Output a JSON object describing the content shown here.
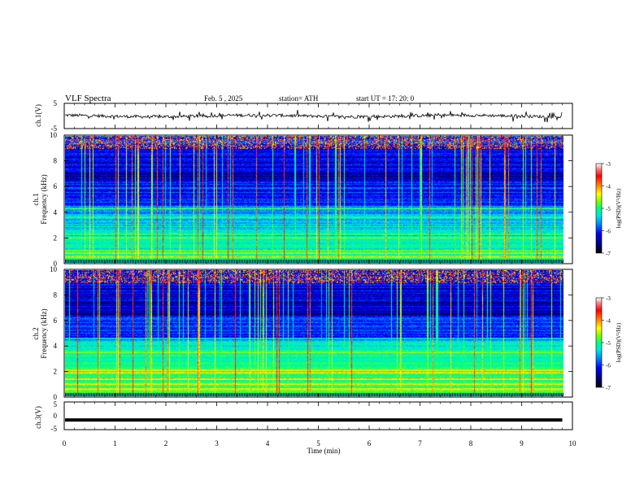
{
  "header": {
    "title": "VLF  Spectra",
    "date": "Feb. 5  , 2025",
    "station": "station= ATH",
    "start": "start  UT  =   17: 20: 0"
  },
  "chart_data": [
    {
      "type": "line",
      "title": "VLF  Spectra",
      "ylabel": "ch.1(V)",
      "ylim": [
        -5,
        5
      ],
      "y_ticks": [
        "5",
        "-5"
      ],
      "x_range_min": [
        0,
        9.8
      ],
      "description_values": "broadband waveform trace, roughly around 0 V with small excursions of about ±1 V"
    },
    {
      "type": "heatmap",
      "ylabel": "ch.1\nFrequency  (kHz)",
      "ylim": [
        0,
        10
      ],
      "y_ticks": [
        "0",
        "2",
        "4",
        "6",
        "8",
        "10"
      ],
      "colorbar": {
        "label": "log(PSD)(V²/Hz)",
        "ticks": [
          "-3",
          "-4",
          "-5",
          "-6",
          "-7"
        ],
        "range": [
          -7,
          -3
        ]
      },
      "bands_khz": [
        0.5,
        0.8,
        1.0,
        2.0,
        2.3,
        3.6,
        4.3
      ]
    },
    {
      "type": "heatmap",
      "ylabel": "ch.2\nFrequency  (kHz)",
      "ylim": [
        0,
        10
      ],
      "y_ticks": [
        "0",
        "2",
        "4",
        "6",
        "8",
        "10"
      ],
      "colorbar": {
        "label": "log(PSD)(V²/Hz)",
        "ticks": [
          "-3",
          "-4",
          "-5",
          "-6",
          "-7"
        ],
        "range": [
          -7,
          -3
        ]
      },
      "bands_khz": [
        0.6,
        1.0,
        1.4,
        1.9,
        2.1,
        3.5,
        4.6
      ]
    },
    {
      "type": "line",
      "ylabel": "ch.3(V)",
      "ylim": [
        -5,
        5
      ],
      "y_ticks": [
        "5",
        "0",
        "-5"
      ],
      "constant_value": -1.5,
      "xlabel": "Time  (min)",
      "xlim": [
        0,
        10
      ],
      "x_ticks": [
        "0",
        "1",
        "2",
        "3",
        "4",
        "5",
        "6",
        "7",
        "8",
        "9",
        "10"
      ]
    }
  ],
  "colors": {
    "background": "#ffffff",
    "axis": "#000000",
    "cmap": [
      "#000000",
      "#00008b",
      "#0000ff",
      "#0080ff",
      "#00e5e5",
      "#00ff80",
      "#80ff00",
      "#ffff00",
      "#ff8000",
      "#ff0000",
      "#ff8080",
      "#ffffff"
    ]
  }
}
